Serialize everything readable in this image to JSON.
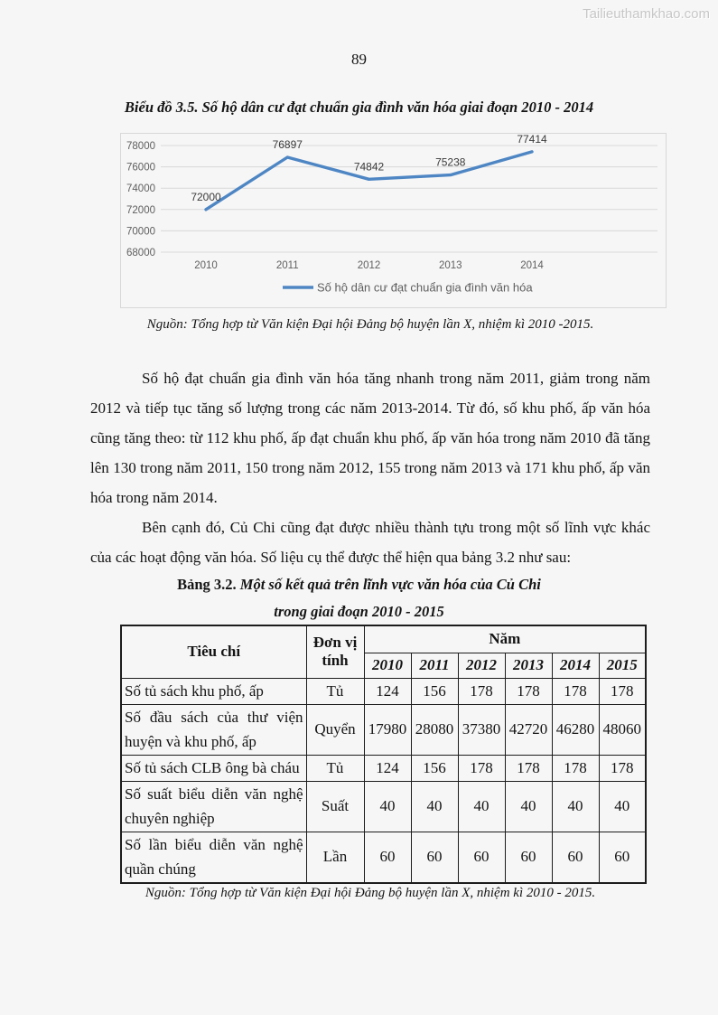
{
  "watermark": "Tailieuthamkhao.com",
  "page_number": "89",
  "chart": {
    "title": "Biểu đồ 3.5. Số hộ dân cư đạt chuẩn gia đình văn hóa giai đoạn 2010 - 2014",
    "source": "Nguồn: Tổng hợp từ Văn kiện Đại hội Đảng bộ huyện lần X, nhiệm kì 2010 -2015."
  },
  "chart_data": {
    "type": "line",
    "categories": [
      "2010",
      "2011",
      "2012",
      "2013",
      "2014"
    ],
    "values": [
      72000,
      76897,
      74842,
      75238,
      77414
    ],
    "data_labels": [
      "72000",
      "76897",
      "74842",
      "75238",
      "77414"
    ],
    "legend": "Số hộ dân cư đạt chuẩn gia đình văn hóa",
    "legend_position": "bottom",
    "ylim": [
      68000,
      78000
    ],
    "yticks": [
      68000,
      70000,
      72000,
      74000,
      76000,
      78000
    ],
    "grid": true,
    "line_color": "#4e86c4",
    "grid_color": "#d9d9d9",
    "tick_label_color": "#5f5f5f",
    "data_label_color": "#3a3a3a",
    "title": "",
    "xlabel": "",
    "ylabel": ""
  },
  "paragraphs": [
    "Số hộ đạt chuẩn gia đình văn hóa tăng nhanh trong năm 2011, giảm trong năm 2012 và tiếp tục tăng số lượng trong các năm 2013-2014. Từ đó, số khu phố, ấp văn hóa cũng tăng theo: từ 112 khu phố, ấp đạt chuẩn khu phố, ấp văn hóa trong năm 2010 đã tăng lên 130 trong năm 2011, 150 trong năm 2012, 155 trong năm 2013 và 171 khu phố, ấp văn hóa trong năm 2014.",
    "Bên cạnh đó, Củ Chi cũng đạt được nhiều thành tựu trong một số lĩnh vực khác của các hoạt động văn hóa. Số liệu cụ thể được thể hiện qua bảng 3.2 như sau:"
  ],
  "table": {
    "title_label": "Bảng 3.2.",
    "title_caption": " Một số kết quả trên lĩnh vực văn hóa của Củ Chi",
    "title_line2": "trong giai đoạn 2010 - 2015",
    "header": {
      "criteria": "Tiêu chí",
      "unit": "Đơn vị tính",
      "year": "Năm",
      "years": [
        "2010",
        "2011",
        "2012",
        "2013",
        "2014",
        "2015"
      ]
    },
    "rows": [
      {
        "label": "Số tủ sách khu phố, ấp",
        "unit": "Tủ",
        "values": [
          "124",
          "156",
          "178",
          "178",
          "178",
          "178"
        ]
      },
      {
        "label": "Số đầu sách của thư viện huyện và khu phố, ấp",
        "unit": "Quyển",
        "values": [
          "17980",
          "28080",
          "37380",
          "42720",
          "46280",
          "48060"
        ]
      },
      {
        "label": "Số tủ sách CLB ông bà cháu",
        "unit": "Tủ",
        "values": [
          "124",
          "156",
          "178",
          "178",
          "178",
          "178"
        ]
      },
      {
        "label": "Số suất biểu diễn văn nghệ chuyên nghiệp",
        "unit": "Suất",
        "values": [
          "40",
          "40",
          "40",
          "40",
          "40",
          "40"
        ]
      },
      {
        "label": "Số lần biểu diễn văn nghệ quần chúng",
        "unit": "Lần",
        "values": [
          "60",
          "60",
          "60",
          "60",
          "60",
          "60"
        ]
      }
    ],
    "source": "Nguồn: Tổng hợp từ Văn kiện Đại hội Đảng bộ huyện lần X, nhiệm kì 2010 - 2015."
  }
}
